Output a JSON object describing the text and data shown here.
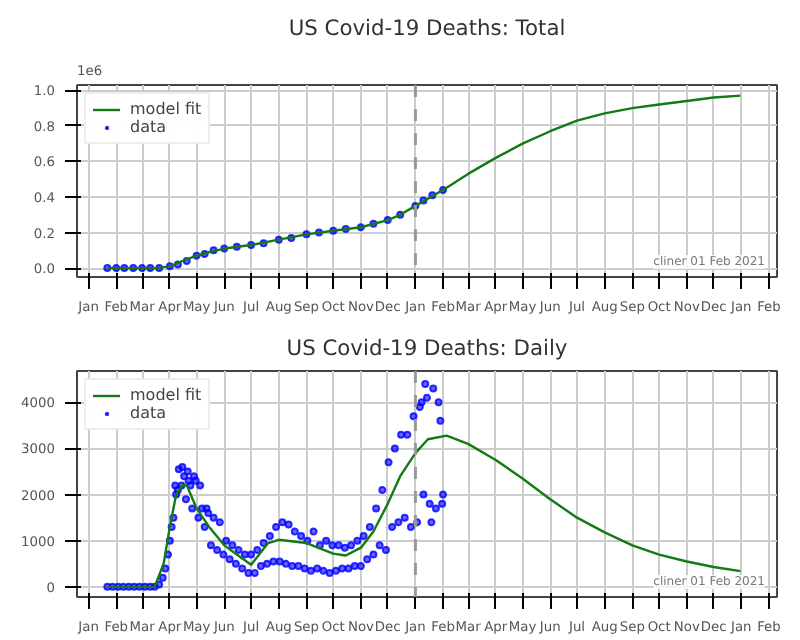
{
  "chart_data": [
    {
      "type": "line",
      "title": "US Covid-19 Deaths: Total",
      "annotations": [
        "1e6",
        "cliner 01 Feb 2021"
      ],
      "xlim": [
        "2019-12-19",
        "2022-02-10"
      ],
      "ylim": [
        -0.05,
        1.03
      ],
      "xticks": [
        {
          "value": "2020-01",
          "label": "Jan"
        },
        {
          "value": "2020-02",
          "label": "Feb"
        },
        {
          "value": "2020-03",
          "label": "Mar"
        },
        {
          "value": "2020-04",
          "label": "Apr"
        },
        {
          "value": "2020-05",
          "label": "May"
        },
        {
          "value": "2020-06",
          "label": "Jun"
        },
        {
          "value": "2020-07",
          "label": "Jul"
        },
        {
          "value": "2020-08",
          "label": "Aug"
        },
        {
          "value": "2020-09",
          "label": "Sep"
        },
        {
          "value": "2020-10",
          "label": "Oct"
        },
        {
          "value": "2020-11",
          "label": "Nov"
        },
        {
          "value": "2020-12",
          "label": "Dec"
        },
        {
          "value": "2021-01",
          "label": "Jan"
        },
        {
          "value": "2021-02",
          "label": "Feb"
        },
        {
          "value": "2021-03",
          "label": "Mar"
        },
        {
          "value": "2021-04",
          "label": "Apr"
        },
        {
          "value": "2021-05",
          "label": "May"
        },
        {
          "value": "2021-06",
          "label": "Jun"
        },
        {
          "value": "2021-07",
          "label": "Jul"
        },
        {
          "value": "2021-08",
          "label": "Aug"
        },
        {
          "value": "2021-09",
          "label": "Sep"
        },
        {
          "value": "2021-10",
          "label": "Oct"
        },
        {
          "value": "2021-11",
          "label": "Nov"
        },
        {
          "value": "2021-12",
          "label": "Dec"
        },
        {
          "value": "2022-01",
          "label": "Jan"
        },
        {
          "value": "2022-02",
          "label": "Feb"
        }
      ],
      "yticks": [
        {
          "value": 0,
          "label": "0.0"
        },
        {
          "value": 0.2,
          "label": "0.2"
        },
        {
          "value": 0.4,
          "label": "0.4"
        },
        {
          "value": 0.6,
          "label": "0.6"
        },
        {
          "value": 0.8,
          "label": "0.8"
        },
        {
          "value": 1,
          "label": "1.0"
        }
      ],
      "grid": true,
      "legend": "top left",
      "ref_lines": [
        {
          "axis": "x",
          "value": "2021-01-01",
          "color": "#999999",
          "line_style": "dashed"
        }
      ],
      "series": [
        {
          "name": "data",
          "type": "scatter",
          "marker": "circle",
          "color": "#0000ff",
          "x": [
            "2020-01-22",
            "2020-02-01",
            "2020-02-10",
            "2020-02-20",
            "2020-03-01",
            "2020-03-10",
            "2020-03-20",
            "2020-04-01",
            "2020-04-10",
            "2020-04-20",
            "2020-05-01",
            "2020-05-10",
            "2020-05-20",
            "2020-06-01",
            "2020-06-15",
            "2020-07-01",
            "2020-07-15",
            "2020-08-01",
            "2020-08-15",
            "2020-09-01",
            "2020-09-15",
            "2020-10-01",
            "2020-10-15",
            "2020-11-01",
            "2020-11-15",
            "2020-12-01",
            "2020-12-15",
            "2021-01-01",
            "2021-01-10",
            "2021-01-20",
            "2021-02-01"
          ],
          "values": [
            0,
            0,
            0,
            0,
            0,
            0,
            0,
            0.01,
            0.02,
            0.04,
            0.07,
            0.08,
            0.1,
            0.11,
            0.12,
            0.13,
            0.14,
            0.16,
            0.17,
            0.19,
            0.2,
            0.21,
            0.22,
            0.23,
            0.25,
            0.27,
            0.3,
            0.35,
            0.38,
            0.41,
            0.44
          ]
        },
        {
          "name": "model fit",
          "color": "#137b13",
          "x": [
            "2020-01-22",
            "2020-03-15",
            "2020-04-01",
            "2020-04-15",
            "2020-05-01",
            "2020-05-15",
            "2020-06-01",
            "2020-07-01",
            "2020-08-01",
            "2020-09-01",
            "2020-10-01",
            "2020-11-01",
            "2020-12-01",
            "2020-12-15",
            "2021-01-01",
            "2021-01-15",
            "2021-02-01",
            "2021-03-01",
            "2021-04-01",
            "2021-05-01",
            "2021-06-01",
            "2021-07-01",
            "2021-08-01",
            "2021-09-01",
            "2021-10-01",
            "2021-11-01",
            "2021-12-01",
            "2021-12-31"
          ],
          "values": [
            0,
            0,
            0.01,
            0.04,
            0.07,
            0.09,
            0.11,
            0.13,
            0.16,
            0.19,
            0.21,
            0.23,
            0.27,
            0.3,
            0.35,
            0.39,
            0.44,
            0.53,
            0.62,
            0.7,
            0.77,
            0.83,
            0.87,
            0.9,
            0.92,
            0.94,
            0.96,
            0.97
          ]
        }
      ]
    },
    {
      "type": "line",
      "title": "US Covid-19 Deaths: Daily",
      "annotations": [
        "cliner 01 Feb 2021"
      ],
      "xlim": [
        "2019-12-19",
        "2022-02-10"
      ],
      "ylim": [
        -220,
        4680
      ],
      "xticks": [
        {
          "value": "2020-01",
          "label": "Jan"
        },
        {
          "value": "2020-02",
          "label": "Feb"
        },
        {
          "value": "2020-03",
          "label": "Mar"
        },
        {
          "value": "2020-04",
          "label": "Apr"
        },
        {
          "value": "2020-05",
          "label": "May"
        },
        {
          "value": "2020-06",
          "label": "Jun"
        },
        {
          "value": "2020-07",
          "label": "Jul"
        },
        {
          "value": "2020-08",
          "label": "Aug"
        },
        {
          "value": "2020-09",
          "label": "Sep"
        },
        {
          "value": "2020-10",
          "label": "Oct"
        },
        {
          "value": "2020-11",
          "label": "Nov"
        },
        {
          "value": "2020-12",
          "label": "Dec"
        },
        {
          "value": "2021-01",
          "label": "Jan"
        },
        {
          "value": "2021-02",
          "label": "Feb"
        },
        {
          "value": "2021-03",
          "label": "Mar"
        },
        {
          "value": "2021-04",
          "label": "Apr"
        },
        {
          "value": "2021-05",
          "label": "May"
        },
        {
          "value": "2021-06",
          "label": "Jun"
        },
        {
          "value": "2021-07",
          "label": "Jul"
        },
        {
          "value": "2021-08",
          "label": "Aug"
        },
        {
          "value": "2021-09",
          "label": "Sep"
        },
        {
          "value": "2021-10",
          "label": "Oct"
        },
        {
          "value": "2021-11",
          "label": "Nov"
        },
        {
          "value": "2021-12",
          "label": "Dec"
        },
        {
          "value": "2022-01",
          "label": "Jan"
        },
        {
          "value": "2022-02",
          "label": "Feb"
        }
      ],
      "yticks": [
        0,
        1000,
        2000,
        3000,
        4000
      ],
      "grid": true,
      "legend": "top left",
      "ref_lines": [
        {
          "axis": "x",
          "value": "2021-01-01",
          "color": "#999999",
          "line_style": "dashed"
        }
      ],
      "series": [
        {
          "name": "data",
          "type": "scatter",
          "marker": "circle",
          "color": "#0000ff",
          "x": [
            "2020-01-22",
            "2020-01-28",
            "2020-02-03",
            "2020-02-09",
            "2020-02-15",
            "2020-02-21",
            "2020-02-27",
            "2020-03-04",
            "2020-03-10",
            "2020-03-15",
            "2020-03-20",
            "2020-03-24",
            "2020-03-27",
            "2020-03-30",
            "2020-04-01",
            "2020-04-03",
            "2020-04-05",
            "2020-04-07",
            "2020-04-08",
            "2020-04-10",
            "2020-04-11",
            "2020-04-14",
            "2020-04-15",
            "2020-04-17",
            "2020-04-19",
            "2020-04-21",
            "2020-04-22",
            "2020-04-24",
            "2020-04-26",
            "2020-04-28",
            "2020-04-30",
            "2020-05-03",
            "2020-05-05",
            "2020-05-07",
            "2020-05-10",
            "2020-05-12",
            "2020-05-14",
            "2020-05-17",
            "2020-05-20",
            "2020-05-24",
            "2020-05-27",
            "2020-05-31",
            "2020-06-03",
            "2020-06-07",
            "2020-06-10",
            "2020-06-14",
            "2020-06-17",
            "2020-06-21",
            "2020-06-24",
            "2020-06-28",
            "2020-07-01",
            "2020-07-05",
            "2020-07-08",
            "2020-07-12",
            "2020-07-15",
            "2020-07-19",
            "2020-07-22",
            "2020-07-26",
            "2020-07-29",
            "2020-08-02",
            "2020-08-05",
            "2020-08-09",
            "2020-08-12",
            "2020-08-16",
            "2020-08-19",
            "2020-08-23",
            "2020-08-26",
            "2020-08-30",
            "2020-09-02",
            "2020-09-06",
            "2020-09-09",
            "2020-09-13",
            "2020-09-16",
            "2020-09-20",
            "2020-09-23",
            "2020-09-27",
            "2020-09-30",
            "2020-10-04",
            "2020-10-07",
            "2020-10-11",
            "2020-10-14",
            "2020-10-18",
            "2020-10-21",
            "2020-10-25",
            "2020-10-28",
            "2020-11-01",
            "2020-11-04",
            "2020-11-08",
            "2020-11-11",
            "2020-11-15",
            "2020-11-18",
            "2020-11-22",
            "2020-11-25",
            "2020-11-29",
            "2020-12-02",
            "2020-12-06",
            "2020-12-09",
            "2020-12-13",
            "2020-12-16",
            "2020-12-20",
            "2020-12-23",
            "2020-12-27",
            "2020-12-30",
            "2021-01-03",
            "2021-01-06",
            "2021-01-08",
            "2021-01-10",
            "2021-01-12",
            "2021-01-14",
            "2021-01-17",
            "2021-01-19",
            "2021-01-21",
            "2021-01-24",
            "2021-01-27",
            "2021-01-29",
            "2021-01-31",
            "2021-02-01"
          ],
          "values": [
            0,
            0,
            0,
            0,
            0,
            0,
            0,
            0,
            0,
            0,
            50,
            200,
            400,
            700,
            1000,
            1300,
            1500,
            2200,
            2000,
            2100,
            2550,
            2200,
            2600,
            2400,
            1900,
            2500,
            2300,
            2200,
            1700,
            2400,
            2300,
            1500,
            2200,
            1700,
            1300,
            1700,
            1600,
            900,
            1500,
            800,
            1400,
            700,
            1000,
            600,
            900,
            500,
            800,
            400,
            700,
            300,
            700,
            300,
            800,
            450,
            950,
            500,
            1100,
            550,
            1300,
            550,
            1400,
            500,
            1350,
            450,
            1200,
            450,
            1100,
            400,
            1000,
            350,
            1200,
            400,
            900,
            350,
            1000,
            300,
            900,
            350,
            900,
            400,
            850,
            400,
            900,
            450,
            1000,
            450,
            1100,
            600,
            1300,
            700,
            1700,
            900,
            2100,
            800,
            2700,
            1300,
            3000,
            1400,
            3300,
            1500,
            3300,
            1300,
            3700,
            1400,
            3900,
            4000,
            2000,
            4400,
            4100,
            1800,
            1400,
            4300,
            1700,
            4000,
            3600,
            1800,
            2000
          ]
        },
        {
          "name": "model fit",
          "color": "#137b13",
          "x": [
            "2020-01-22",
            "2020-03-15",
            "2020-03-25",
            "2020-04-01",
            "2020-04-08",
            "2020-04-15",
            "2020-04-20",
            "2020-05-01",
            "2020-05-15",
            "2020-06-01",
            "2020-06-15",
            "2020-07-01",
            "2020-07-10",
            "2020-07-20",
            "2020-08-01",
            "2020-09-01",
            "2020-10-01",
            "2020-10-15",
            "2020-11-01",
            "2020-11-15",
            "2020-12-01",
            "2020-12-15",
            "2021-01-01",
            "2021-01-15",
            "2021-02-05",
            "2021-03-01",
            "2021-04-01",
            "2021-05-01",
            "2021-06-01",
            "2021-07-01",
            "2021-08-01",
            "2021-09-01",
            "2021-10-01",
            "2021-11-01",
            "2021-12-01",
            "2021-12-31"
          ],
          "values": [
            0,
            0,
            500,
            1300,
            2000,
            2200,
            2200,
            1700,
            1300,
            900,
            700,
            480,
            700,
            950,
            1020,
            950,
            720,
            680,
            850,
            1200,
            1800,
            2400,
            2900,
            3200,
            3280,
            3100,
            2750,
            2350,
            1900,
            1500,
            1180,
            900,
            700,
            550,
            430,
            340
          ]
        }
      ]
    }
  ]
}
